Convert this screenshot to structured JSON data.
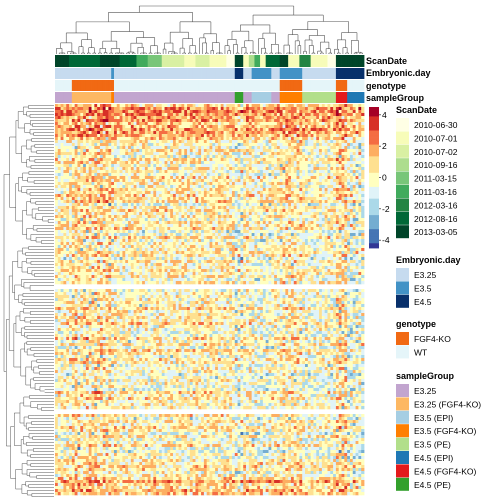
{
  "chart_data": {
    "type": "heatmap",
    "title": "",
    "heatmap": {
      "row_splits": 4,
      "value_range": [
        -4.5,
        4.5
      ],
      "scale_ticks": [
        4,
        2,
        0,
        -2,
        -4
      ],
      "palette": [
        "#313695",
        "#4575b4",
        "#74add1",
        "#abd9e9",
        "#e0f3f8",
        "#ffffbf",
        "#fee090",
        "#fdae61",
        "#f46d43",
        "#d73027",
        "#a50026"
      ],
      "has_row_dendrogram": true,
      "has_column_dendrogram": true
    },
    "annotation_tracks": [
      {
        "name": "ScanDate",
        "label": "ScanDate",
        "levels": [
          "2010-06-30",
          "2010-07-01",
          "2010-07-02",
          "2010-09-16",
          "2011-03-15",
          "2011-03-16",
          "2012-03-16",
          "2012-08-16",
          "2013-03-05"
        ],
        "colors": [
          "#ffffe5",
          "#f7fcb9",
          "#d9f0a3",
          "#addd8e",
          "#78c679",
          "#41ab5d",
          "#238443",
          "#006837",
          "#004529"
        ]
      },
      {
        "name": "Embryonic.day",
        "label": "Embryonic.day",
        "levels": [
          "E3.25",
          "E3.5",
          "E4.5"
        ],
        "colors": [
          "#c6dbef",
          "#4292c6",
          "#08306b"
        ]
      },
      {
        "name": "genotype",
        "label": "genotype",
        "levels": [
          "FGF4-KO",
          "WT"
        ],
        "colors": [
          "#f16913",
          "#e5f5f9"
        ]
      },
      {
        "name": "sampleGroup",
        "label": "sampleGroup",
        "levels": [
          "E3.25",
          "E3.25 (FGF4-KO)",
          "E3.5 (EPI)",
          "E3.5 (FGF4-KO)",
          "E3.5 (PE)",
          "E4.5 (EPI)",
          "E4.5 (FGF4-KO)",
          "E4.5 (PE)"
        ],
        "colors": [
          "#c2a5cf",
          "#fdb863",
          "#a6cee3",
          "#ff7f00",
          "#b2df8a",
          "#1f78b4",
          "#e31a1c",
          "#33a02c"
        ]
      }
    ],
    "column_annotation_sequence": {
      "ScanDate": [
        8,
        8,
        8,
        8,
        8,
        7,
        7,
        7,
        7,
        7,
        7,
        7,
        7,
        7,
        7,
        7,
        8,
        8,
        8,
        8,
        8,
        8,
        8,
        7,
        7,
        7,
        7,
        7,
        7,
        5,
        5,
        5,
        5,
        4,
        4,
        4,
        4,
        4,
        2,
        2,
        2,
        2,
        2,
        2,
        2,
        2,
        1,
        1,
        1,
        1,
        2,
        2,
        2,
        2,
        2,
        1,
        1,
        1,
        1,
        1,
        1,
        0,
        0,
        0,
        8,
        8,
        8,
        1,
        1,
        3,
        3,
        5,
        5,
        1,
        1,
        7,
        7,
        7,
        7,
        7,
        8,
        8,
        8,
        1,
        1,
        1,
        1,
        6,
        6,
        6,
        6,
        1,
        1,
        1,
        1,
        1,
        1,
        0,
        0,
        0,
        8,
        8,
        8,
        8,
        8,
        8,
        8,
        8,
        8,
        8
      ],
      "Embryonic.day": [
        0,
        0,
        0,
        0,
        0,
        0,
        0,
        0,
        0,
        0,
        0,
        0,
        0,
        0,
        0,
        0,
        0,
        0,
        0,
        0,
        1,
        0,
        0,
        0,
        0,
        0,
        0,
        0,
        0,
        0,
        0,
        0,
        0,
        0,
        0,
        0,
        0,
        0,
        0,
        0,
        0,
        0,
        0,
        0,
        0,
        0,
        0,
        0,
        0,
        0,
        0,
        0,
        0,
        0,
        0,
        0,
        0,
        0,
        0,
        0,
        0,
        0,
        0,
        0,
        2,
        2,
        2,
        0,
        0,
        0,
        1,
        1,
        1,
        1,
        1,
        1,
        1,
        0,
        0,
        0,
        1,
        1,
        1,
        1,
        1,
        1,
        1,
        1,
        0,
        0,
        0,
        0,
        0,
        0,
        0,
        0,
        0,
        0,
        0,
        0,
        2,
        2,
        2,
        2,
        2,
        2,
        2,
        2,
        2,
        2
      ],
      "genotype": [
        1,
        1,
        1,
        1,
        1,
        1,
        0,
        0,
        0,
        0,
        0,
        0,
        0,
        0,
        0,
        0,
        0,
        0,
        0,
        0,
        0,
        1,
        1,
        1,
        1,
        1,
        1,
        1,
        1,
        1,
        1,
        1,
        1,
        1,
        1,
        1,
        1,
        1,
        1,
        1,
        1,
        1,
        1,
        1,
        1,
        1,
        1,
        1,
        1,
        1,
        1,
        1,
        1,
        1,
        1,
        1,
        1,
        1,
        1,
        1,
        1,
        1,
        1,
        1,
        1,
        1,
        1,
        1,
        1,
        1,
        1,
        1,
        1,
        1,
        1,
        1,
        1,
        1,
        1,
        1,
        0,
        0,
        0,
        0,
        0,
        0,
        0,
        0,
        1,
        1,
        1,
        1,
        1,
        1,
        1,
        1,
        1,
        1,
        1,
        1,
        0,
        0,
        0,
        0,
        1,
        1,
        1,
        1,
        1,
        1
      ],
      "sampleGroup": [
        0,
        0,
        0,
        0,
        0,
        0,
        1,
        1,
        1,
        1,
        1,
        1,
        1,
        1,
        1,
        1,
        1,
        1,
        1,
        1,
        3,
        0,
        0,
        0,
        0,
        0,
        0,
        0,
        0,
        0,
        0,
        0,
        0,
        0,
        0,
        0,
        0,
        0,
        0,
        0,
        0,
        0,
        0,
        0,
        0,
        0,
        0,
        0,
        0,
        0,
        0,
        0,
        0,
        0,
        0,
        0,
        0,
        0,
        0,
        0,
        0,
        0,
        0,
        0,
        7,
        7,
        7,
        0,
        0,
        0,
        2,
        2,
        2,
        2,
        2,
        2,
        2,
        0,
        0,
        0,
        3,
        3,
        3,
        3,
        3,
        3,
        3,
        3,
        4,
        4,
        4,
        4,
        4,
        4,
        4,
        4,
        4,
        4,
        4,
        4,
        6,
        6,
        6,
        6,
        5,
        5,
        5,
        5,
        5,
        5
      ]
    }
  }
}
